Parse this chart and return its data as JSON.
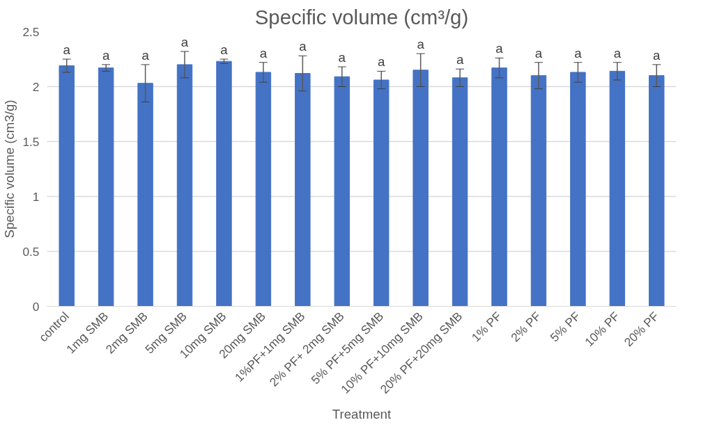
{
  "chart_data": {
    "type": "bar",
    "title": "Specific volume (cm³/g)",
    "xlabel": "Treatment",
    "ylabel": "Specific volume (cm3/g)",
    "categories": [
      "control",
      "1mg SMB",
      "2mg SMB",
      "5mg SMB",
      "10mg SMB",
      "20mg SMB",
      "1%PF+1mg SMB",
      "2% PF+ 2mg SMB",
      "5% PF+5mg SMB",
      "10% PF+10mg SMB",
      "20% PF+20mg SMB",
      "1% PF",
      "2% PF",
      "5% PF",
      "10% PF",
      "20% PF"
    ],
    "values": [
      2.19,
      2.17,
      2.03,
      2.2,
      2.23,
      2.13,
      2.12,
      2.09,
      2.06,
      2.15,
      2.08,
      2.17,
      2.1,
      2.13,
      2.14,
      2.1
    ],
    "errors": [
      0.06,
      0.03,
      0.17,
      0.12,
      0.02,
      0.09,
      0.16,
      0.09,
      0.08,
      0.15,
      0.08,
      0.09,
      0.12,
      0.09,
      0.08,
      0.1
    ],
    "color": "#4472c4",
    "ylim": [
      0,
      2.5
    ],
    "yticks": [
      0,
      0.5,
      1,
      1.5,
      2,
      2.5
    ],
    "grid": "y",
    "annotations": [
      {
        "text": "a",
        "x": "control",
        "y": 2.25
      },
      {
        "text": "a",
        "x": "1mg SMB",
        "y": 2.2
      },
      {
        "text": "a",
        "x": "2mg SMB",
        "y": 2.2
      },
      {
        "text": "a",
        "x": "5mg SMB",
        "y": 2.32
      },
      {
        "text": "a",
        "x": "10mg SMB",
        "y": 2.25
      },
      {
        "text": "a",
        "x": "20mg SMB",
        "y": 2.22
      },
      {
        "text": "a",
        "x": "1%PF+1mg SMB",
        "y": 2.28
      },
      {
        "text": "a",
        "x": "2% PF+ 2mg SMB",
        "y": 2.18
      },
      {
        "text": "a",
        "x": "5% PF+5mg SMB",
        "y": 2.14
      },
      {
        "text": "a",
        "x": "10% PF+10mg SMB",
        "y": 2.3
      },
      {
        "text": "a",
        "x": "20% PF+20mg SMB",
        "y": 2.16
      },
      {
        "text": "a",
        "x": "1% PF",
        "y": 2.26
      },
      {
        "text": "a",
        "x": "2% PF",
        "y": 2.22
      },
      {
        "text": "a",
        "x": "5% PF",
        "y": 2.22
      },
      {
        "text": "a",
        "x": "10% PF",
        "y": 2.22
      },
      {
        "text": "a",
        "x": "20% PF",
        "y": 2.2
      }
    ]
  }
}
